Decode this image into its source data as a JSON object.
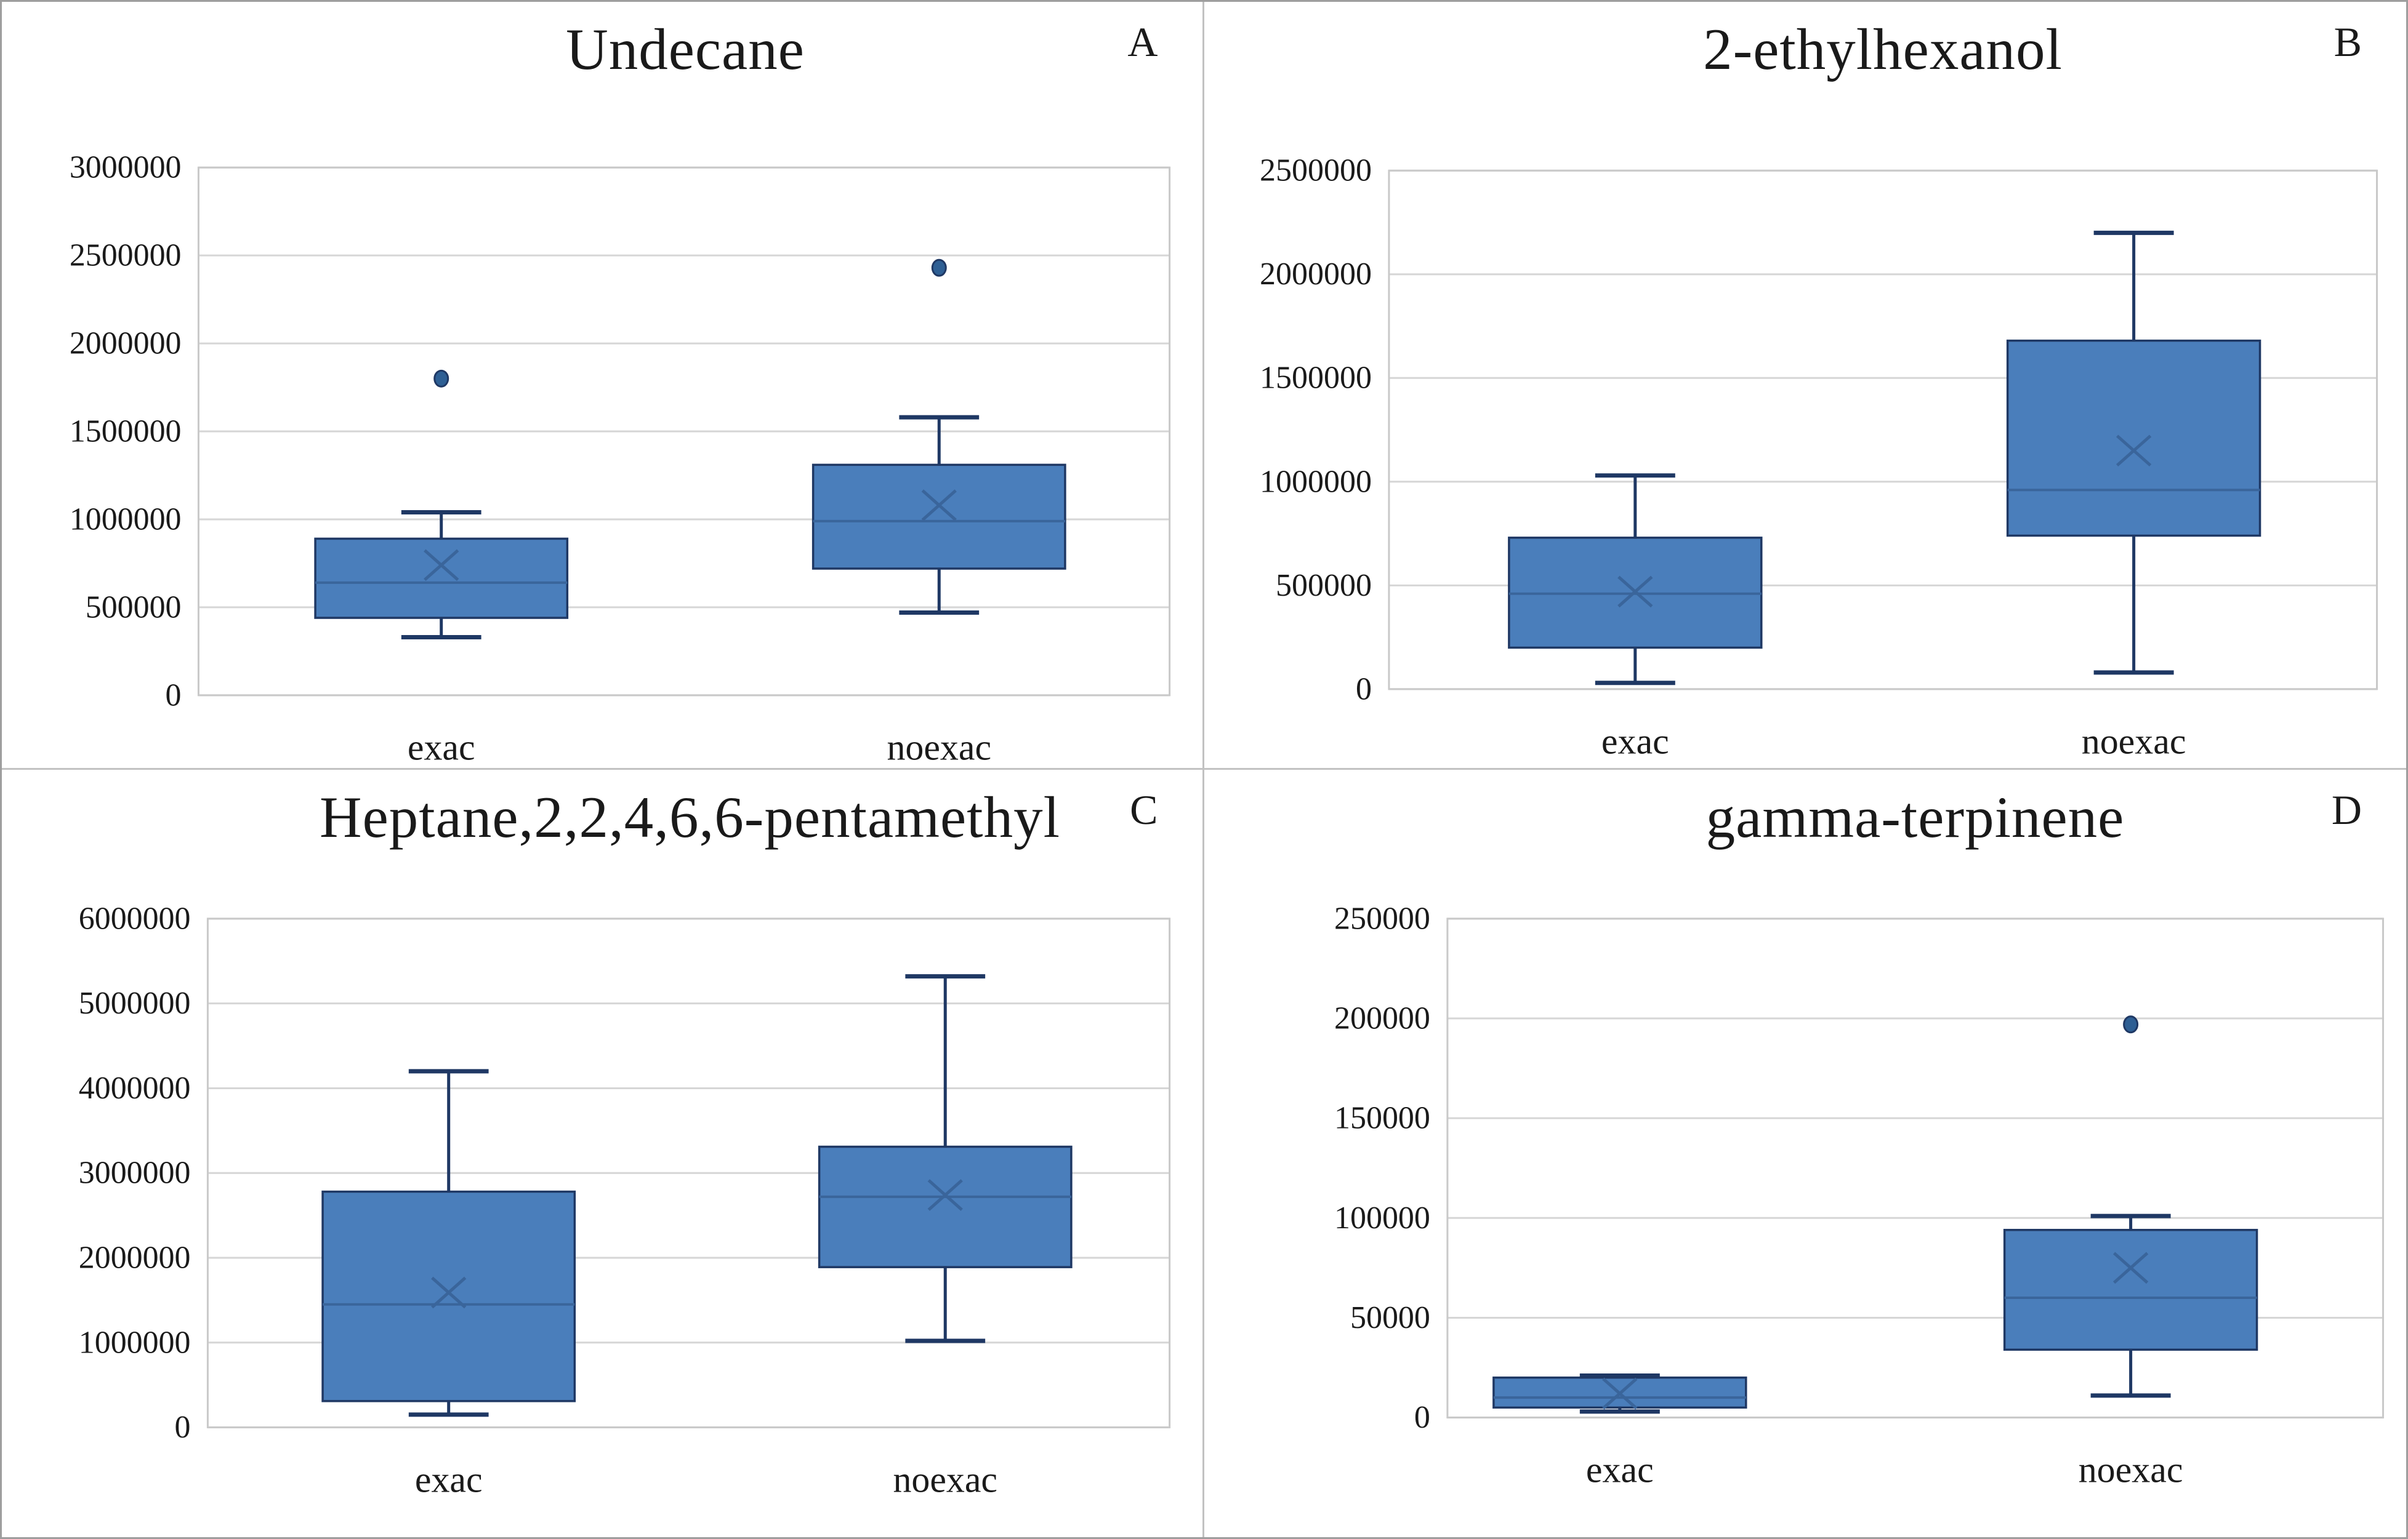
{
  "style": {
    "box_fill": "#4A7EBB",
    "box_border": "#1F3864",
    "whisker_color": "#1F3864",
    "median_color": "#3A659B",
    "mean_marker_color": "#3A659B",
    "outlier_fill": "#2E5F94",
    "gridline_color": "#D6D6D6",
    "plot_border_color": "#C9C9C9",
    "text_color": "#1A1A1A",
    "background": "#FFFFFF"
  },
  "chart_data": [
    {
      "id": "A",
      "type": "boxplot",
      "title": "Undecane",
      "panel_letter": "A",
      "categories": [
        "exac",
        "noexac"
      ],
      "ylim": [
        0,
        3000000
      ],
      "ytick_step": 500000,
      "grid": true,
      "legend": "none",
      "series": [
        {
          "name": "exac",
          "whisker_low": 330000,
          "q1": 440000,
          "median": 640000,
          "mean": 740000,
          "q3": 890000,
          "whisker_high": 1040000,
          "outliers": [
            1800000
          ]
        },
        {
          "name": "noexac",
          "whisker_low": 470000,
          "q1": 720000,
          "median": 990000,
          "mean": 1080000,
          "q3": 1310000,
          "whisker_high": 1580000,
          "outliers": [
            2430000
          ]
        }
      ]
    },
    {
      "id": "B",
      "type": "boxplot",
      "title": "2-ethylhexanol",
      "panel_letter": "B",
      "categories": [
        "exac",
        "noexac"
      ],
      "ylim": [
        0,
        2500000
      ],
      "ytick_step": 500000,
      "grid": true,
      "legend": "none",
      "series": [
        {
          "name": "exac",
          "whisker_low": 30000,
          "q1": 200000,
          "median": 460000,
          "mean": 470000,
          "q3": 730000,
          "whisker_high": 1030000,
          "outliers": []
        },
        {
          "name": "noexac",
          "whisker_low": 80000,
          "q1": 740000,
          "median": 960000,
          "mean": 1150000,
          "q3": 1680000,
          "whisker_high": 2200000,
          "outliers": []
        }
      ]
    },
    {
      "id": "C",
      "type": "boxplot",
      "title": "Heptane,2,2,4,6,6-pentamethyl",
      "panel_letter": "C",
      "categories": [
        "exac",
        "noexac"
      ],
      "ylim": [
        0,
        6000000
      ],
      "ytick_step": 1000000,
      "grid": true,
      "legend": "none",
      "series": [
        {
          "name": "exac",
          "whisker_low": 150000,
          "q1": 310000,
          "median": 1450000,
          "mean": 1590000,
          "q3": 2780000,
          "whisker_high": 4200000,
          "outliers": []
        },
        {
          "name": "noexac",
          "whisker_low": 1020000,
          "q1": 1890000,
          "median": 2720000,
          "mean": 2740000,
          "q3": 3310000,
          "whisker_high": 5320000,
          "outliers": []
        }
      ]
    },
    {
      "id": "D",
      "type": "boxplot",
      "title": "gamma-terpinene",
      "panel_letter": "D",
      "categories": [
        "exac",
        "noexac"
      ],
      "ylim": [
        0,
        250000
      ],
      "ytick_step": 50000,
      "grid": true,
      "legend": "none",
      "series": [
        {
          "name": "exac",
          "whisker_low": 3000,
          "q1": 5000,
          "median": 10000,
          "mean": 12000,
          "q3": 20000,
          "whisker_high": 21000,
          "outliers": []
        },
        {
          "name": "noexac",
          "whisker_low": 11000,
          "q1": 34000,
          "median": 60000,
          "mean": 75000,
          "q3": 94000,
          "whisker_high": 101000,
          "outliers": [
            197000
          ]
        }
      ]
    }
  ]
}
